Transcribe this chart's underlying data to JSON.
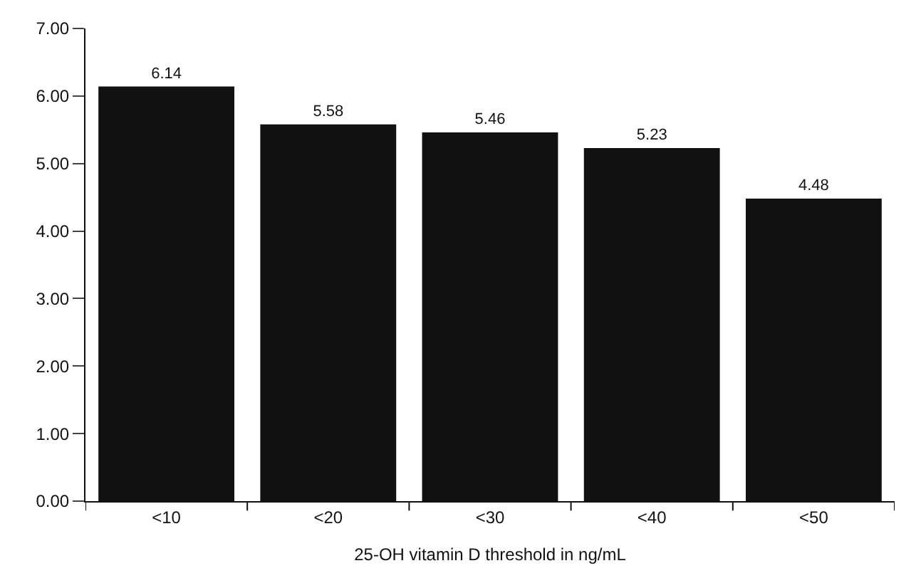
{
  "chart_data": {
    "type": "bar",
    "xlabel": "25-OH vitamin D threshold in ng/mL",
    "categories": [
      "<10",
      "<20",
      "<30",
      "<40",
      "<50"
    ],
    "values": [
      6.14,
      5.58,
      5.46,
      5.23,
      4.48
    ],
    "color": "#111111",
    "data_labels": true,
    "ylim": [
      0,
      7
    ],
    "yticks": [
      {
        "value": 0,
        "label": "0.00"
      },
      {
        "value": 1,
        "label": "1.00"
      },
      {
        "value": 2,
        "label": "2.00"
      },
      {
        "value": 3,
        "label": "3.00"
      },
      {
        "value": 4,
        "label": "4.00"
      },
      {
        "value": 5,
        "label": "5.00"
      },
      {
        "value": 6,
        "label": "6.00"
      },
      {
        "value": 7,
        "label": "7.00"
      }
    ],
    "legend": false
  }
}
